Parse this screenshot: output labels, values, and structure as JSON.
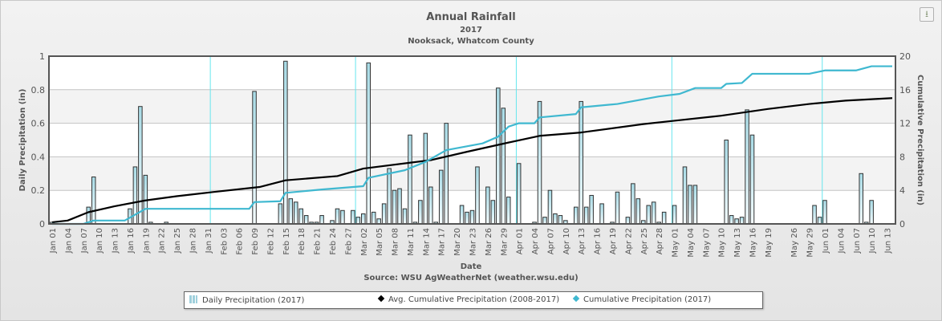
{
  "header": {
    "title": "Annual Rainfall",
    "subtitle_year": "2017",
    "subtitle_location": "Nooksack, Whatcom County",
    "download_icon": "download-icon"
  },
  "source": "Source:  WSU AgWeatherNet (weather.wsu.edu)",
  "legend": {
    "items": [
      {
        "label": "Daily Precipitation (2017)",
        "icon": "bar-chart-icon",
        "color": "#b8e0ea"
      },
      {
        "label": "Avg. Cumulative Precipitation (2008-2017)",
        "icon": "diamond-icon",
        "color": "#000000"
      },
      {
        "label": "Cumulative Precipitation (2017)",
        "icon": "diamond-icon",
        "color": "#3fb8d0"
      }
    ]
  },
  "chart_data": {
    "type": "bar",
    "title": "Annual Rainfall",
    "subtitle": "2017 — Nooksack, Whatcom County",
    "xlabel": "Date",
    "ylabel": "Daily Precipitation (in)",
    "y2label": "Cumulative Precipitation (in)",
    "ylim": [
      0,
      1
    ],
    "y2lim": [
      0,
      20
    ],
    "yticks": [
      "0",
      "0.2",
      "0.4",
      "0.6",
      "0.8",
      "1"
    ],
    "y2ticks": [
      "0",
      "4",
      "8",
      "12",
      "16",
      "20"
    ],
    "grid": true,
    "legend_position": "bottom",
    "month_markers": [
      "Feb 01",
      "Mar 01",
      "Apr 01",
      "May 01",
      "Jun 01"
    ],
    "xtick_labels": [
      "Jan 01",
      "Jan 04",
      "Jan 07",
      "Jan 10",
      "Jan 13",
      "Jan 16",
      "Jan 19",
      "Jan 22",
      "Jan 25",
      "Jan 28",
      "Jan 31",
      "Feb 03",
      "Feb 06",
      "Feb 09",
      "Feb 12",
      "Feb 15",
      "Feb 18",
      "Feb 21",
      "Feb 24",
      "Feb 27",
      "Mar 02",
      "Mar 05",
      "Mar 08",
      "Mar 11",
      "Mar 14",
      "Mar 17",
      "Mar 20",
      "Mar 23",
      "Mar 26",
      "Mar 29",
      "Apr 01",
      "Apr 04",
      "Apr 07",
      "Apr 10",
      "Apr 13",
      "Apr 16",
      "Apr 19",
      "Apr 22",
      "Apr 25",
      "Apr 28",
      "May 01",
      "May 04",
      "May 07",
      "May 10",
      "May 13",
      "May 16",
      "May 19",
      "May 26",
      "May 29",
      "Jun 01",
      "Jun 04",
      "Jun 07",
      "Jun 10",
      "Jun 13"
    ],
    "date_ranges": [
      [
        "2017-01-01",
        "2017-05-21"
      ],
      [
        "2017-05-24",
        "2017-06-14"
      ]
    ],
    "series": [
      {
        "name": "Daily Precipitation (2017)",
        "type": "bar",
        "axis": "left",
        "points": [
          [
            "Jan 01",
            0.01
          ],
          [
            "Jan 08",
            0.1
          ],
          [
            "Jan 09",
            0.28
          ],
          [
            "Jan 16",
            0.09
          ],
          [
            "Jan 17",
            0.34
          ],
          [
            "Jan 18",
            0.7
          ],
          [
            "Jan 19",
            0.29
          ],
          [
            "Jan 20",
            0.01
          ],
          [
            "Jan 23",
            0.01
          ],
          [
            "Feb 09",
            0.79
          ],
          [
            "Feb 14",
            0.12
          ],
          [
            "Feb 15",
            0.97
          ],
          [
            "Feb 16",
            0.15
          ],
          [
            "Feb 17",
            0.13
          ],
          [
            "Feb 18",
            0.09
          ],
          [
            "Feb 19",
            0.05
          ],
          [
            "Feb 20",
            0.01
          ],
          [
            "Feb 21",
            0.01
          ],
          [
            "Feb 22",
            0.05
          ],
          [
            "Feb 24",
            0.02
          ],
          [
            "Feb 25",
            0.09
          ],
          [
            "Feb 26",
            0.08
          ],
          [
            "Feb 28",
            0.08
          ],
          [
            "Mar 01",
            0.04
          ],
          [
            "Mar 02",
            0.06
          ],
          [
            "Mar 03",
            0.96
          ],
          [
            "Mar 04",
            0.07
          ],
          [
            "Mar 05",
            0.03
          ],
          [
            "Mar 06",
            0.12
          ],
          [
            "Mar 07",
            0.33
          ],
          [
            "Mar 08",
            0.2
          ],
          [
            "Mar 09",
            0.21
          ],
          [
            "Mar 10",
            0.09
          ],
          [
            "Mar 11",
            0.53
          ],
          [
            "Mar 12",
            0.01
          ],
          [
            "Mar 13",
            0.14
          ],
          [
            "Mar 14",
            0.54
          ],
          [
            "Mar 15",
            0.22
          ],
          [
            "Mar 16",
            0.01
          ],
          [
            "Mar 17",
            0.32
          ],
          [
            "Mar 18",
            0.6
          ],
          [
            "Mar 21",
            0.11
          ],
          [
            "Mar 22",
            0.07
          ],
          [
            "Mar 23",
            0.08
          ],
          [
            "Mar 24",
            0.34
          ],
          [
            "Mar 26",
            0.22
          ],
          [
            "Mar 27",
            0.14
          ],
          [
            "Mar 28",
            0.81
          ],
          [
            "Mar 29",
            0.69
          ],
          [
            "Mar 30",
            0.16
          ],
          [
            "Apr 01",
            0.36
          ],
          [
            "Apr 04",
            0.01
          ],
          [
            "Apr 05",
            0.73
          ],
          [
            "Apr 06",
            0.04
          ],
          [
            "Apr 07",
            0.2
          ],
          [
            "Apr 08",
            0.06
          ],
          [
            "Apr 09",
            0.05
          ],
          [
            "Apr 10",
            0.02
          ],
          [
            "Apr 12",
            0.1
          ],
          [
            "Apr 13",
            0.73
          ],
          [
            "Apr 14",
            0.1
          ],
          [
            "Apr 15",
            0.17
          ],
          [
            "Apr 17",
            0.12
          ],
          [
            "Apr 19",
            0.01
          ],
          [
            "Apr 20",
            0.19
          ],
          [
            "Apr 22",
            0.04
          ],
          [
            "Apr 23",
            0.24
          ],
          [
            "Apr 24",
            0.15
          ],
          [
            "Apr 25",
            0.02
          ],
          [
            "Apr 26",
            0.11
          ],
          [
            "Apr 27",
            0.13
          ],
          [
            "Apr 28",
            0.01
          ],
          [
            "Apr 29",
            0.07
          ],
          [
            "May 01",
            0.11
          ],
          [
            "May 03",
            0.34
          ],
          [
            "May 04",
            0.23
          ],
          [
            "May 05",
            0.23
          ],
          [
            "May 11",
            0.5
          ],
          [
            "May 12",
            0.05
          ],
          [
            "May 13",
            0.03
          ],
          [
            "May 14",
            0.04
          ],
          [
            "May 15",
            0.68
          ],
          [
            "May 16",
            0.53
          ],
          [
            "May 30",
            0.11
          ],
          [
            "May 31",
            0.04
          ],
          [
            "Jun 01",
            0.14
          ],
          [
            "Jun 08",
            0.3
          ],
          [
            "Jun 09",
            0.01
          ],
          [
            "Jun 10",
            0.14
          ]
        ]
      },
      {
        "name": "Avg. Cumulative Precipitation (2008-2017)",
        "type": "line",
        "axis": "right",
        "color": "#000000",
        "points": [
          [
            "Jan 01",
            0.2
          ],
          [
            "Jan 04",
            0.4
          ],
          [
            "Jan 08",
            1.4
          ],
          [
            "Jan 13",
            2.1
          ],
          [
            "Jan 19",
            2.8
          ],
          [
            "Jan 25",
            3.3
          ],
          [
            "Feb 01",
            3.8
          ],
          [
            "Feb 10",
            4.4
          ],
          [
            "Feb 15",
            5.2
          ],
          [
            "Feb 25",
            5.7
          ],
          [
            "Mar 02",
            6.6
          ],
          [
            "Mar 15",
            7.6
          ],
          [
            "Mar 22",
            8.6
          ],
          [
            "Mar 30",
            9.7
          ],
          [
            "Apr 05",
            10.5
          ],
          [
            "Apr 13",
            10.9
          ],
          [
            "Apr 25",
            11.9
          ],
          [
            "May 01",
            12.3
          ],
          [
            "May 10",
            12.9
          ],
          [
            "May 19",
            13.7
          ],
          [
            "May 29",
            14.3
          ],
          [
            "Jun 05",
            14.7
          ],
          [
            "Jun 14",
            15.0
          ]
        ]
      },
      {
        "name": "Cumulative Precipitation (2017)",
        "type": "line",
        "axis": "right",
        "color": "#3fb8d0",
        "points": [
          [
            "Jan 01",
            0.0
          ],
          [
            "Jan 07",
            0.0
          ],
          [
            "Jan 09",
            0.4
          ],
          [
            "Jan 15",
            0.4
          ],
          [
            "Jan 19",
            1.8
          ],
          [
            "Feb 08",
            1.8
          ],
          [
            "Feb 09",
            2.6
          ],
          [
            "Feb 14",
            2.7
          ],
          [
            "Feb 15",
            3.7
          ],
          [
            "Feb 22",
            4.1
          ],
          [
            "Mar 02",
            4.5
          ],
          [
            "Mar 03",
            5.5
          ],
          [
            "Mar 10",
            6.4
          ],
          [
            "Mar 14",
            7.4
          ],
          [
            "Mar 18",
            8.8
          ],
          [
            "Mar 25",
            9.6
          ],
          [
            "Mar 28",
            10.4
          ],
          [
            "Mar 30",
            11.6
          ],
          [
            "Apr 01",
            12.0
          ],
          [
            "Apr 04",
            12.0
          ],
          [
            "Apr 05",
            12.7
          ],
          [
            "Apr 12",
            13.1
          ],
          [
            "Apr 13",
            13.9
          ],
          [
            "Apr 20",
            14.3
          ],
          [
            "Apr 28",
            15.2
          ],
          [
            "May 02",
            15.5
          ],
          [
            "May 05",
            16.2
          ],
          [
            "May 10",
            16.2
          ],
          [
            "May 11",
            16.7
          ],
          [
            "May 14",
            16.8
          ],
          [
            "May 16",
            17.9
          ],
          [
            "May 29",
            17.9
          ],
          [
            "Jun 01",
            18.3
          ],
          [
            "Jun 07",
            18.3
          ],
          [
            "Jun 10",
            18.8
          ],
          [
            "Jun 14",
            18.8
          ]
        ]
      }
    ]
  }
}
